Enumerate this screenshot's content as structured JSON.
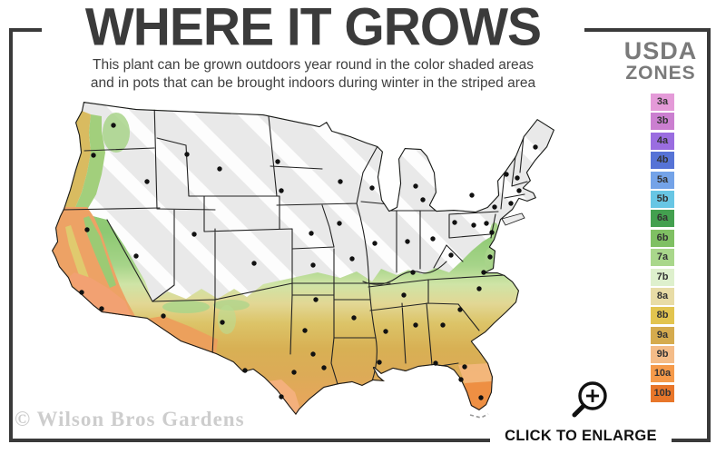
{
  "header": {
    "title": "WHERE IT GROWS",
    "subtitle_line1": "This plant can be grown outdoors year round in the color shaded areas",
    "subtitle_line2": "and in pots that can be brought indoors during winter in the striped area"
  },
  "legend": {
    "title_line1": "USDA",
    "title_line2": "ZONES",
    "zones": [
      {
        "label": "3a",
        "color": "#e49ad8"
      },
      {
        "label": "3b",
        "color": "#cb7fd0"
      },
      {
        "label": "4a",
        "color": "#9a6de0"
      },
      {
        "label": "4b",
        "color": "#5673d6"
      },
      {
        "label": "5a",
        "color": "#74a3e8"
      },
      {
        "label": "5b",
        "color": "#68c6e4"
      },
      {
        "label": "6a",
        "color": "#43a04f"
      },
      {
        "label": "6b",
        "color": "#7fc063"
      },
      {
        "label": "7a",
        "color": "#a9d78b"
      },
      {
        "label": "7b",
        "color": "#def0cd"
      },
      {
        "label": "8a",
        "color": "#e8dca6"
      },
      {
        "label": "8b",
        "color": "#e2c44f"
      },
      {
        "label": "9a",
        "color": "#d5ab4e"
      },
      {
        "label": "9b",
        "color": "#f4bc88"
      },
      {
        "label": "10a",
        "color": "#f59a4a"
      },
      {
        "label": "10b",
        "color": "#e8762a"
      }
    ]
  },
  "footer": {
    "watermark": "© Wilson Bros Gardens",
    "enlarge_label": "CLICK TO ENLARGE",
    "magnifier_icon": "magnifying-glass-plus-icon"
  },
  "map": {
    "description": "Continental United States USDA hardiness zone map; striped gray area = indoor-winter zone, colored area = grows outdoors year round",
    "striped_area_color": "#e9e9e9",
    "stripe_color": "#ffffff",
    "outline_color": "#1a1a1a",
    "state_line_color": "#222222",
    "city_dot_color": "#111111",
    "frame_color": "#3a3a3a",
    "city_dots": [
      [
        125,
        138
      ],
      [
        103,
        171
      ],
      [
        162,
        200
      ],
      [
        206,
        170
      ],
      [
        242,
        186
      ],
      [
        306,
        178
      ],
      [
        310,
        210
      ],
      [
        375,
        200
      ],
      [
        410,
        207
      ],
      [
        374,
        246
      ],
      [
        343,
        257
      ],
      [
        214,
        258
      ],
      [
        150,
        282
      ],
      [
        96,
        253
      ],
      [
        90,
        322
      ],
      [
        112,
        340
      ],
      [
        280,
        290
      ],
      [
        345,
        292
      ],
      [
        388,
        285
      ],
      [
        413,
        268
      ],
      [
        449,
        266
      ],
      [
        477,
        263
      ],
      [
        458,
        205
      ],
      [
        466,
        220
      ],
      [
        455,
        300
      ],
      [
        445,
        325
      ],
      [
        497,
        281
      ],
      [
        533,
        300
      ],
      [
        540,
        283
      ],
      [
        501,
        245
      ],
      [
        522,
        248
      ],
      [
        536,
        246
      ],
      [
        520,
        215
      ],
      [
        545,
        228
      ],
      [
        542,
        256
      ],
      [
        528,
        318
      ],
      [
        507,
        341
      ],
      [
        488,
        358
      ],
      [
        458,
        358
      ],
      [
        425,
        365
      ],
      [
        390,
        350
      ],
      [
        418,
        399
      ],
      [
        348,
        330
      ],
      [
        336,
        364
      ],
      [
        345,
        390
      ],
      [
        324,
        410
      ],
      [
        357,
        405
      ],
      [
        310,
        437
      ],
      [
        270,
        408
      ],
      [
        245,
        355
      ],
      [
        180,
        348
      ],
      [
        480,
        400
      ],
      [
        512,
        404
      ],
      [
        508,
        418
      ],
      [
        530,
        438
      ],
      [
        558,
        192
      ],
      [
        570,
        196
      ],
      [
        590,
        162
      ],
      [
        572,
        210
      ],
      [
        563,
        224
      ]
    ]
  }
}
